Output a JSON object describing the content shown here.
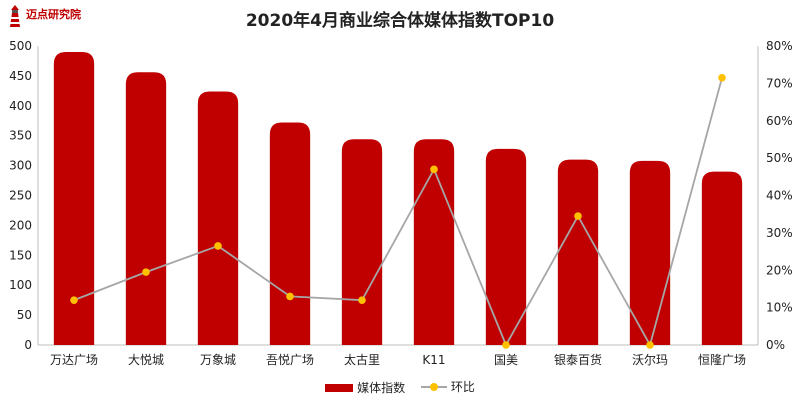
{
  "brand": {
    "name": "迈点研究院"
  },
  "chart_data": {
    "type": "bar",
    "title": "2020年4月商业综合体媒体指数TOP10",
    "categories": [
      "万达广场",
      "大悦城",
      "万象城",
      "吾悦广场",
      "太古里",
      "K11",
      "国美",
      "银泰百货",
      "沃尔玛",
      "恒隆广场"
    ],
    "series": [
      {
        "name": "媒体指数",
        "type": "bar",
        "axis": "left",
        "color": "#c00000",
        "values": [
          490,
          456,
          424,
          372,
          344,
          344,
          328,
          310,
          308,
          290
        ]
      },
      {
        "name": "环比",
        "type": "line",
        "axis": "right",
        "color": "#a6a6a6",
        "marker_color": "#ffc000",
        "values": [
          12.0,
          19.5,
          26.5,
          13.0,
          12.0,
          47.0,
          0.0,
          34.5,
          0.0,
          71.5
        ]
      }
    ],
    "y_left": {
      "min": 0,
      "max": 500,
      "step": 50
    },
    "y_right": {
      "min": 0,
      "max": 80,
      "step": 10,
      "unit": "%"
    },
    "grid": false,
    "legend_position": "bottom"
  }
}
